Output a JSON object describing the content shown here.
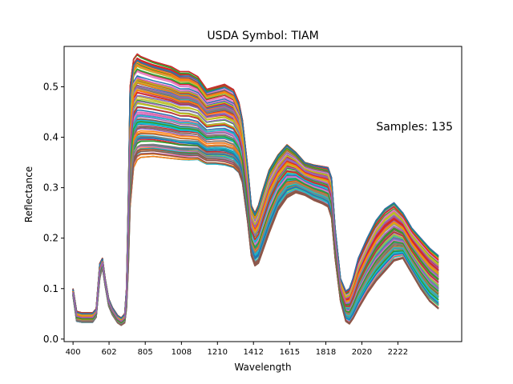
{
  "chart_data": {
    "type": "line",
    "title": "USDA Symbol: TIAM",
    "xlabel": "Wavelength",
    "ylabel": "Reflectance",
    "annotation": "Samples: 135",
    "xlim": [
      350,
      2580
    ],
    "ylim": [
      -0.005,
      0.58
    ],
    "x_ticks": [
      400,
      602,
      805,
      1008,
      1210,
      1412,
      1615,
      1818,
      2020,
      2222
    ],
    "y_ticks": [
      0.0,
      0.1,
      0.2,
      0.3,
      0.4,
      0.5
    ],
    "y_tick_labels": [
      "0.0",
      "0.1",
      "0.2",
      "0.3",
      "0.4",
      "0.5"
    ],
    "grid": false,
    "legend": "none",
    "sample_count": 135,
    "profile_x": [
      400,
      420,
      450,
      480,
      510,
      530,
      550,
      565,
      580,
      600,
      620,
      650,
      670,
      690,
      700,
      710,
      720,
      740,
      760,
      780,
      850,
      950,
      1000,
      1050,
      1100,
      1130,
      1150,
      1200,
      1250,
      1300,
      1330,
      1350,
      1380,
      1400,
      1420,
      1440,
      1460,
      1500,
      1550,
      1600,
      1650,
      1700,
      1750,
      1800,
      1830,
      1850,
      1870,
      1900,
      1930,
      1950,
      1970,
      2000,
      2050,
      2100,
      2150,
      2200,
      2250,
      2300,
      2350,
      2400,
      2450
    ],
    "series_min": [
      0.085,
      0.035,
      0.033,
      0.033,
      0.033,
      0.043,
      0.12,
      0.142,
      0.105,
      0.065,
      0.048,
      0.032,
      0.027,
      0.032,
      0.06,
      0.14,
      0.26,
      0.34,
      0.355,
      0.36,
      0.362,
      0.358,
      0.356,
      0.355,
      0.356,
      0.35,
      0.347,
      0.347,
      0.345,
      0.34,
      0.33,
      0.31,
      0.23,
      0.165,
      0.145,
      0.15,
      0.17,
      0.21,
      0.255,
      0.28,
      0.29,
      0.285,
      0.275,
      0.268,
      0.262,
      0.24,
      0.16,
      0.075,
      0.035,
      0.03,
      0.04,
      0.06,
      0.09,
      0.115,
      0.135,
      0.155,
      0.16,
      0.13,
      0.1,
      0.075,
      0.06
    ],
    "series_max": [
      0.1,
      0.055,
      0.052,
      0.052,
      0.052,
      0.06,
      0.15,
      0.16,
      0.12,
      0.08,
      0.063,
      0.047,
      0.042,
      0.05,
      0.1,
      0.28,
      0.5,
      0.555,
      0.565,
      0.56,
      0.55,
      0.54,
      0.53,
      0.53,
      0.52,
      0.505,
      0.495,
      0.5,
      0.505,
      0.495,
      0.47,
      0.435,
      0.34,
      0.265,
      0.25,
      0.265,
      0.29,
      0.335,
      0.365,
      0.385,
      0.37,
      0.35,
      0.345,
      0.342,
      0.34,
      0.32,
      0.22,
      0.12,
      0.095,
      0.1,
      0.12,
      0.16,
      0.2,
      0.235,
      0.258,
      0.27,
      0.25,
      0.22,
      0.2,
      0.18,
      0.165
    ],
    "colors": [
      "#1f77b4",
      "#ff7f0e",
      "#2ca02c",
      "#d62728",
      "#9467bd",
      "#8c564b",
      "#e377c2",
      "#7f7f7f",
      "#bcbd22",
      "#17becf"
    ]
  }
}
